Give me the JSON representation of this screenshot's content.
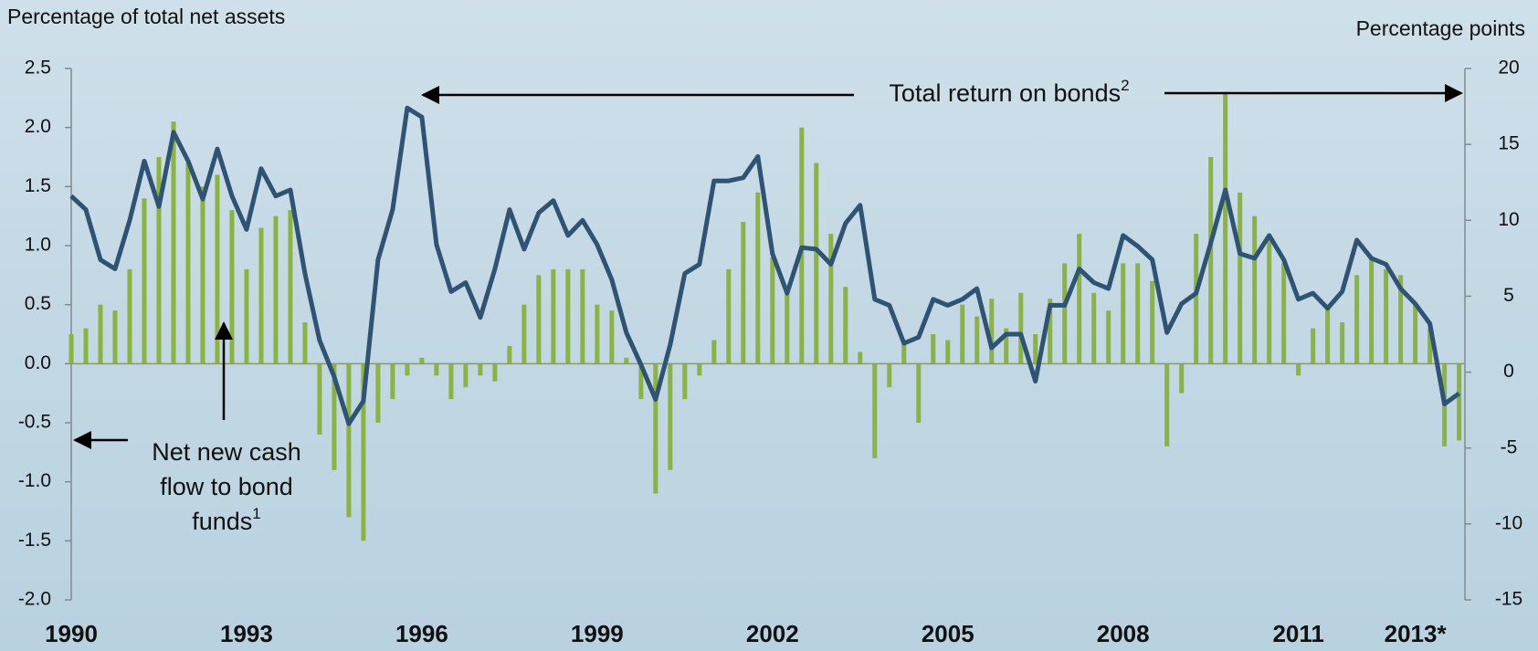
{
  "chart_data": {
    "type": "bar-line",
    "y_label": "Percentage of total net assets",
    "y2_label": "Percentage points",
    "x": [
      1990,
      1990.25,
      1990.5,
      1990.75,
      1991,
      1991.25,
      1991.5,
      1991.75,
      1992,
      1992.25,
      1992.5,
      1992.75,
      1993,
      1993.25,
      1993.5,
      1993.75,
      1994,
      1994.25,
      1994.5,
      1994.75,
      1995,
      1995.25,
      1995.5,
      1995.75,
      1996,
      1996.25,
      1996.5,
      1996.75,
      1997,
      1997.25,
      1997.5,
      1997.75,
      1998,
      1998.25,
      1998.5,
      1998.75,
      1999,
      1999.25,
      1999.5,
      1999.75,
      2000,
      2000.25,
      2000.5,
      2000.75,
      2001,
      2001.25,
      2001.5,
      2001.75,
      2002,
      2002.25,
      2002.5,
      2002.75,
      2003,
      2003.25,
      2003.5,
      2003.75,
      2004,
      2004.25,
      2004.5,
      2004.75,
      2005,
      2005.25,
      2005.5,
      2005.75,
      2006,
      2006.25,
      2006.5,
      2006.75,
      2007,
      2007.25,
      2007.5,
      2007.75,
      2008,
      2008.25,
      2008.5,
      2008.75,
      2009,
      2009.25,
      2009.5,
      2009.75,
      2010,
      2010.25,
      2010.5,
      2010.75,
      2011,
      2011.25,
      2011.5,
      2011.75,
      2012,
      2012.25,
      2012.5,
      2012.75,
      2013,
      2013.25,
      2013.5,
      2013.75
    ],
    "xlim": [
      1990,
      2013.85
    ],
    "xticks": [
      1990,
      1993,
      1996,
      1999,
      2002,
      2005,
      2008,
      2011,
      {
        "value": 2013,
        "label": "2013*"
      }
    ],
    "ylim": [
      -2.0,
      2.5
    ],
    "yticks": [
      2.5,
      {
        "value": 2.0,
        "label": "2.0"
      },
      1.5,
      {
        "value": 1.0,
        "label": "1.0"
      },
      0.5,
      {
        "value": 0.0,
        "label": "0.0"
      },
      -0.5,
      {
        "value": -1.0,
        "label": "-1.0"
      },
      -1.5,
      {
        "value": -2.0,
        "label": "-2.0"
      }
    ],
    "y2lim": [
      -15,
      20
    ],
    "y2ticks": [
      20,
      15,
      10,
      5,
      0,
      -5,
      -10,
      -15
    ],
    "series": [
      {
        "name": "Net new cash flow to bond funds",
        "type": "bar",
        "color": "#8ab43c",
        "values": [
          0.25,
          0.3,
          0.5,
          0.45,
          0.8,
          1.4,
          1.75,
          2.05,
          1.7,
          1.5,
          1.6,
          1.3,
          0.8,
          1.15,
          1.25,
          1.3,
          0.35,
          -0.6,
          -0.9,
          -1.3,
          -1.5,
          -0.5,
          -0.3,
          -0.1,
          0.05,
          -0.1,
          -0.3,
          -0.2,
          -0.1,
          -0.15,
          0.15,
          0.5,
          0.75,
          0.8,
          0.8,
          0.8,
          0.5,
          0.45,
          0.05,
          -0.3,
          -1.1,
          -0.9,
          -0.3,
          -0.1,
          0.2,
          0.8,
          1.2,
          1.45,
          0.9,
          0.6,
          2.0,
          1.7,
          1.1,
          0.65,
          0.1,
          -0.8,
          -0.2,
          0.2,
          -0.5,
          0.25,
          0.2,
          0.5,
          0.4,
          0.55,
          0.3,
          0.6,
          0.25,
          0.55,
          0.85,
          1.1,
          0.6,
          0.45,
          0.85,
          0.85,
          0.7,
          -0.7,
          -0.25,
          1.1,
          1.75,
          2.3,
          1.45,
          1.25,
          1.05,
          0.85,
          -0.1,
          0.3,
          0.5,
          0.35,
          0.75,
          0.9,
          0.8,
          0.75,
          0.5,
          0.3,
          -0.7,
          -0.65
        ]
      },
      {
        "name": "Total return on bonds",
        "type": "line",
        "axis": "y2",
        "color": "#2f5373",
        "values": [
          11.6,
          10.7,
          7.4,
          6.8,
          10.0,
          13.9,
          10.9,
          15.8,
          13.9,
          11.4,
          14.7,
          11.6,
          9.4,
          13.4,
          11.6,
          12.0,
          6.5,
          2.1,
          -0.3,
          -3.4,
          -1.9,
          7.4,
          10.7,
          17.4,
          16.8,
          8.4,
          5.3,
          5.9,
          3.6,
          6.8,
          10.7,
          8.1,
          10.5,
          11.3,
          9.0,
          10.0,
          8.4,
          6.1,
          2.6,
          0.5,
          -1.8,
          1.8,
          6.5,
          7.1,
          12.6,
          12.6,
          12.8,
          14.2,
          7.8,
          5.2,
          8.2,
          8.1,
          7.1,
          9.8,
          11.0,
          4.8,
          4.4,
          1.9,
          2.3,
          4.8,
          4.4,
          4.8,
          5.5,
          1.6,
          2.5,
          2.5,
          -0.6,
          4.4,
          4.4,
          6.8,
          5.9,
          5.5,
          9.0,
          8.3,
          7.4,
          2.6,
          4.5,
          5.2,
          8.5,
          12.0,
          7.8,
          7.5,
          9.0,
          7.4,
          4.8,
          5.2,
          4.2,
          5.3,
          8.7,
          7.5,
          7.1,
          5.5,
          4.5,
          3.2,
          -2.1,
          -1.4
        ]
      }
    ],
    "annotations": [
      {
        "text": "Total return on bonds",
        "note": "2"
      },
      {
        "text": [
          "Net new cash",
          "flow to bond",
          "funds"
        ],
        "note": "1"
      }
    ]
  }
}
